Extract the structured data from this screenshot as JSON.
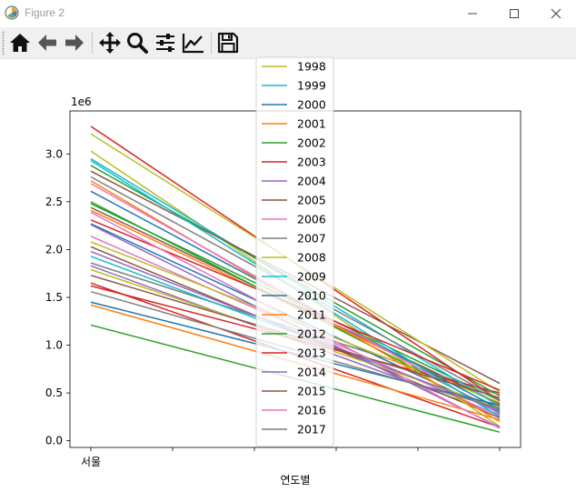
{
  "window": {
    "title": "Figure 2",
    "app_icon": "matplotlib-icon",
    "controls": [
      "minimize-icon",
      "maximize-icon",
      "close-icon"
    ]
  },
  "toolbar": {
    "buttons": [
      "home-icon",
      "back-icon",
      "forward-icon",
      "pan-icon",
      "zoom-icon",
      "subplots-icon",
      "edit-axes-icon",
      "save-icon"
    ]
  },
  "chart_data": {
    "type": "line",
    "xlabel": "연도별",
    "x_tick_labels": [
      "서울",
      "",
      "",
      "",
      "",
      ""
    ],
    "y_tick_labels": [
      "0.0",
      "0.5",
      "1.0",
      "1.5",
      "2.0",
      "2.5",
      "3.0"
    ],
    "y_offset_label": "1e6",
    "ylim": [
      -70000,
      3450000
    ],
    "grid": false,
    "legend_position": "top-center (overlapping plot)",
    "series": [
      {
        "name": "1998",
        "color": "#bcbd22",
        "start": 3030000,
        "end": 150000
      },
      {
        "name": "1999",
        "color": "#17becf",
        "start": 2950000,
        "end": 360000
      },
      {
        "name": "2000",
        "color": "#1f77b4",
        "start": 2610000,
        "end": 330000
      },
      {
        "name": "2001",
        "color": "#ff7f0e",
        "start": 2720000,
        "end": 200000
      },
      {
        "name": "2002",
        "color": "#2ca02c",
        "start": 2880000,
        "end": 470000
      },
      {
        "name": "2003",
        "color": "#d62728",
        "start": 3290000,
        "end": 420000
      },
      {
        "name": "2004",
        "color": "#9467bd",
        "start": 2260000,
        "end": 140000
      },
      {
        "name": "2005",
        "color": "#8c564b",
        "start": 2820000,
        "end": 600000
      },
      {
        "name": "2006",
        "color": "#e377c2",
        "start": 2690000,
        "end": 280000
      },
      {
        "name": "2007",
        "color": "#7f7f7f",
        "start": 2760000,
        "end": 430000
      },
      {
        "name": "2008",
        "color": "#bcbd22",
        "start": 3210000,
        "end": 510000
      },
      {
        "name": "2009",
        "color": "#17becf",
        "start": 2930000,
        "end": 250000
      },
      {
        "name": "2010",
        "color": "#1f77b4",
        "start": 1450000,
        "end": 370000
      },
      {
        "name": "2011",
        "color": "#ff7f0e",
        "start": 1420000,
        "end": 220000
      },
      {
        "name": "2012",
        "color": "#2ca02c",
        "start": 1210000,
        "end": 90000
      },
      {
        "name": "2013",
        "color": "#d62728",
        "start": 2310000,
        "end": 530000
      },
      {
        "name": "2014",
        "color": "#9467bd",
        "start": 1980000,
        "end": 310000
      },
      {
        "name": "2015",
        "color": "#8c564b",
        "start": 1730000,
        "end": 450000
      },
      {
        "name": "2016",
        "color": "#e377c2",
        "start": 2390000,
        "end": 130000
      },
      {
        "name": "2017",
        "color": "#7f7f7f",
        "start": 1560000,
        "end": 340000
      }
    ],
    "unlisted_lines": [
      {
        "color": "#1f77b4",
        "start": 2270000,
        "end": 290000
      },
      {
        "color": "#ff7f0e",
        "start": 2410000,
        "end": 380000
      },
      {
        "color": "#2ca02c",
        "start": 2480000,
        "end": 420000
      },
      {
        "color": "#d62728",
        "start": 1650000,
        "end": 140000
      },
      {
        "color": "#9467bd",
        "start": 1830000,
        "end": 270000
      },
      {
        "color": "#8c564b",
        "start": 2440000,
        "end": 390000
      },
      {
        "color": "#e377c2",
        "start": 2140000,
        "end": 260000
      },
      {
        "color": "#7f7f7f",
        "start": 1860000,
        "end": 480000
      },
      {
        "color": "#bcbd22",
        "start": 2080000,
        "end": 400000
      },
      {
        "color": "#17becf",
        "start": 1930000,
        "end": 320000
      },
      {
        "color": "#2ca02c",
        "start": 2500000,
        "end": 300000
      },
      {
        "color": "#8c564b",
        "start": 2030000,
        "end": 240000
      },
      {
        "color": "#bcbd22",
        "start": 1790000,
        "end": 350000
      },
      {
        "color": "#d62728",
        "start": 1620000,
        "end": 500000
      }
    ]
  }
}
